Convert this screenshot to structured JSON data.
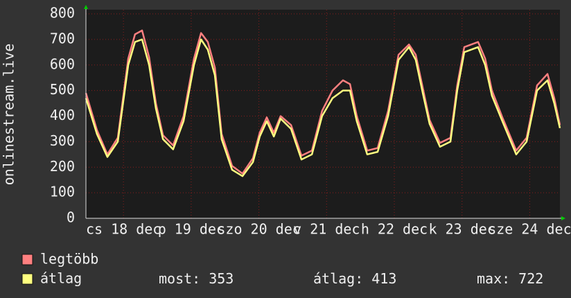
{
  "chart_data": {
    "type": "line",
    "y_label": "onlinestream.live",
    "x": [
      0,
      3.9,
      7.6,
      11.3,
      15,
      17.4,
      19.9,
      22.4,
      24.8,
      27.3,
      30.9,
      34.6,
      38.3,
      40.8,
      43.2,
      45.7,
      48.1,
      51.8,
      55.5,
      59.2,
      61.6,
      64.1,
      66.6,
      69,
      72.7,
      76.4,
      80.1,
      83.7,
      87.4,
      91.1,
      93.6,
      96,
      99.7,
      103.4,
      107.1,
      110.8,
      114.5,
      116.9,
      119.4,
      121.8,
      125.5,
      129.2,
      131.6,
      134.1,
      139,
      141.5,
      143.9,
      147.6,
      152.5,
      156.2,
      159.9,
      163.6,
      166,
      168
    ],
    "series": [
      {
        "name": "legtöbb",
        "color": "#ff8080",
        "values": [
          490,
          345,
          250,
          315,
          625,
          720,
          735,
          630,
          450,
          325,
          285,
          400,
          625,
          725,
          690,
          590,
          330,
          205,
          175,
          235,
          335,
          395,
          335,
          400,
          365,
          245,
          265,
          420,
          500,
          540,
          525,
          400,
          265,
          275,
          420,
          640,
          680,
          640,
          510,
          385,
          295,
          315,
          520,
          670,
          690,
          625,
          500,
          395,
          265,
          315,
          520,
          565,
          470,
          365
        ]
      },
      {
        "name": "átlag",
        "color": "#ffff80",
        "values": [
          470,
          330,
          240,
          300,
          600,
          690,
          700,
          600,
          430,
          310,
          270,
          380,
          600,
          700,
          660,
          560,
          310,
          190,
          165,
          220,
          320,
          380,
          320,
          390,
          350,
          230,
          250,
          400,
          470,
          500,
          500,
          380,
          250,
          260,
          400,
          620,
          670,
          620,
          490,
          370,
          280,
          300,
          500,
          650,
          670,
          600,
          480,
          380,
          250,
          300,
          500,
          540,
          450,
          353
        ]
      }
    ],
    "xlim": [
      0,
      168
    ],
    "xticks": [
      {
        "value": 13.3,
        "label": "cs 18 dec"
      },
      {
        "value": 37.3,
        "label": "p 19 dec"
      },
      {
        "value": 61.3,
        "label": "szo 20 dec"
      },
      {
        "value": 85.3,
        "label": "v 21 dec"
      },
      {
        "value": 109.3,
        "label": "h 22 dec"
      },
      {
        "value": 133.3,
        "label": "k 23 dec"
      },
      {
        "value": 157.3,
        "label": "sze 24 dec"
      }
    ],
    "ylim": [
      0,
      800
    ],
    "yticks": [
      0,
      100,
      200,
      300,
      400,
      500,
      600,
      700,
      800
    ],
    "grid": true,
    "stats": [
      {
        "label": "most:",
        "value": 353
      },
      {
        "label": "átlag:",
        "value": 413
      },
      {
        "label": "max:",
        "value": 722
      }
    ]
  }
}
